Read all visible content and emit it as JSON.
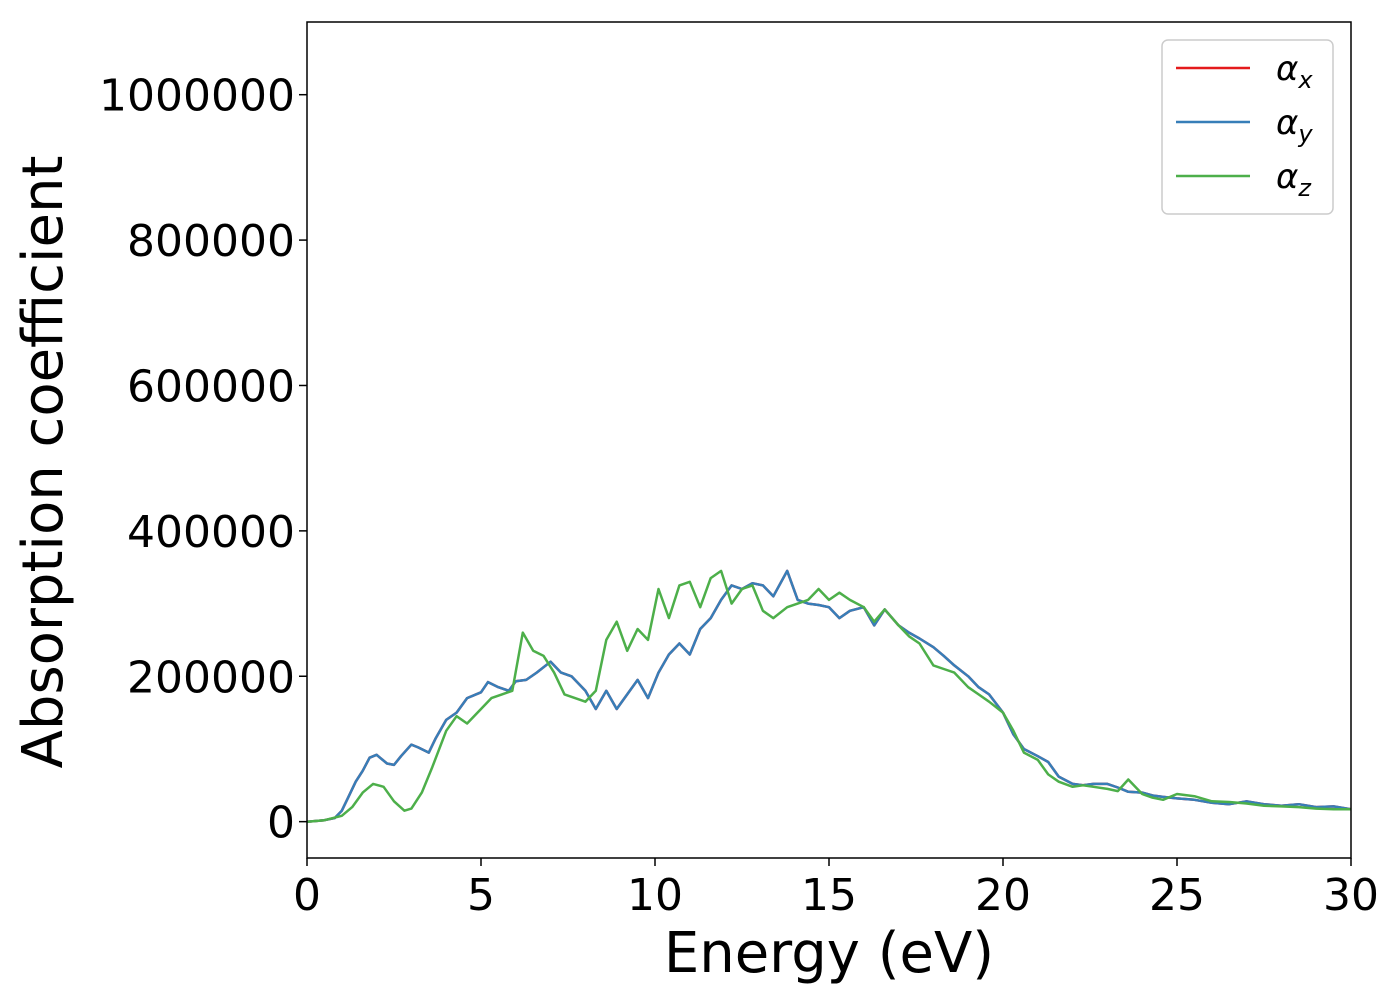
{
  "chart_data": {
    "type": "line",
    "title": "",
    "xlabel": "Energy (eV)",
    "ylabel": "Absorption coefficient",
    "xlim": [
      0,
      30
    ],
    "ylim": [
      -50000,
      1100000
    ],
    "xticks": [
      0,
      5,
      10,
      15,
      20,
      25,
      30
    ],
    "yticks": [
      0,
      200000,
      400000,
      600000,
      800000,
      1000000
    ],
    "xtick_labels": [
      "0",
      "5",
      "10",
      "15",
      "20",
      "25",
      "30"
    ],
    "ytick_labels": [
      "0",
      "200000",
      "400000",
      "600000",
      "800000",
      "1000000"
    ],
    "grid": false,
    "legend_position": "top-right",
    "series": [
      {
        "name": "αx",
        "name_base": "α",
        "name_sub": "x",
        "color": "#e41a1c",
        "x": [
          0,
          0.5,
          0.8,
          1.0,
          1.2,
          1.4,
          1.6,
          1.8,
          2.0,
          2.3,
          2.5,
          2.7,
          3.0,
          3.2,
          3.5,
          3.7,
          4.0,
          4.3,
          4.6,
          5.0,
          5.2,
          5.5,
          5.8,
          6.0,
          6.3,
          6.6,
          7.0,
          7.3,
          7.6,
          8.0,
          8.3,
          8.6,
          8.9,
          9.2,
          9.5,
          9.8,
          10.1,
          10.4,
          10.7,
          11.0,
          11.3,
          11.6,
          11.9,
          12.2,
          12.5,
          12.8,
          13.1,
          13.4,
          13.8,
          14.1,
          14.4,
          14.7,
          15.0,
          15.3,
          15.6,
          16.0,
          16.3,
          16.6,
          17.0,
          17.3,
          17.6,
          18.0,
          18.3,
          18.6,
          19.0,
          19.3,
          19.6,
          20.0,
          20.3,
          20.6,
          21.0,
          21.3,
          21.6,
          22.0,
          22.3,
          22.6,
          23.0,
          23.3,
          23.6,
          24.0,
          24.3,
          24.6,
          25.0,
          25.5,
          26.0,
          26.5,
          27.0,
          27.5,
          28.0,
          28.5,
          29.0,
          29.5,
          30.0
        ],
        "y": [
          0,
          2000,
          5000,
          15000,
          35000,
          55000,
          70000,
          88000,
          92000,
          80000,
          78000,
          90000,
          106000,
          102000,
          95000,
          115000,
          140000,
          150000,
          170000,
          178000,
          192000,
          185000,
          180000,
          193000,
          195000,
          205000,
          220000,
          205000,
          200000,
          180000,
          155000,
          180000,
          155000,
          175000,
          195000,
          170000,
          205000,
          230000,
          245000,
          230000,
          265000,
          280000,
          305000,
          325000,
          320000,
          328000,
          325000,
          310000,
          345000,
          305000,
          300000,
          298000,
          295000,
          280000,
          290000,
          295000,
          270000,
          292000,
          270000,
          260000,
          252000,
          240000,
          228000,
          215000,
          200000,
          185000,
          175000,
          150000,
          120000,
          100000,
          90000,
          82000,
          62000,
          52000,
          50000,
          52000,
          52000,
          47000,
          41000,
          40000,
          36000,
          34000,
          32000,
          30000,
          26000,
          24000,
          28000,
          24000,
          22000,
          24000,
          20000,
          21000,
          17000
        ]
      },
      {
        "name": "αy",
        "name_base": "α",
        "name_sub": "y",
        "color": "#377eb8",
        "x": [
          0,
          0.5,
          0.8,
          1.0,
          1.2,
          1.4,
          1.6,
          1.8,
          2.0,
          2.3,
          2.5,
          2.7,
          3.0,
          3.2,
          3.5,
          3.7,
          4.0,
          4.3,
          4.6,
          5.0,
          5.2,
          5.5,
          5.8,
          6.0,
          6.3,
          6.6,
          7.0,
          7.3,
          7.6,
          8.0,
          8.3,
          8.6,
          8.9,
          9.2,
          9.5,
          9.8,
          10.1,
          10.4,
          10.7,
          11.0,
          11.3,
          11.6,
          11.9,
          12.2,
          12.5,
          12.8,
          13.1,
          13.4,
          13.8,
          14.1,
          14.4,
          14.7,
          15.0,
          15.3,
          15.6,
          16.0,
          16.3,
          16.6,
          17.0,
          17.3,
          17.6,
          18.0,
          18.3,
          18.6,
          19.0,
          19.3,
          19.6,
          20.0,
          20.3,
          20.6,
          21.0,
          21.3,
          21.6,
          22.0,
          22.3,
          22.6,
          23.0,
          23.3,
          23.6,
          24.0,
          24.3,
          24.6,
          25.0,
          25.5,
          26.0,
          26.5,
          27.0,
          27.5,
          28.0,
          28.5,
          29.0,
          29.5,
          30.0
        ],
        "y": [
          0,
          2000,
          5000,
          15000,
          35000,
          55000,
          70000,
          88000,
          92000,
          80000,
          78000,
          90000,
          106000,
          102000,
          95000,
          115000,
          140000,
          150000,
          170000,
          178000,
          192000,
          185000,
          180000,
          193000,
          195000,
          205000,
          220000,
          205000,
          200000,
          180000,
          155000,
          180000,
          155000,
          175000,
          195000,
          170000,
          205000,
          230000,
          245000,
          230000,
          265000,
          280000,
          305000,
          325000,
          320000,
          328000,
          325000,
          310000,
          345000,
          305000,
          300000,
          298000,
          295000,
          280000,
          290000,
          295000,
          270000,
          292000,
          270000,
          260000,
          252000,
          240000,
          228000,
          215000,
          200000,
          185000,
          175000,
          150000,
          120000,
          100000,
          90000,
          82000,
          62000,
          52000,
          50000,
          52000,
          52000,
          47000,
          41000,
          40000,
          36000,
          34000,
          32000,
          30000,
          26000,
          24000,
          28000,
          24000,
          22000,
          24000,
          20000,
          21000,
          17000
        ]
      },
      {
        "name": "αz",
        "name_base": "α",
        "name_sub": "z",
        "color": "#4daf4a",
        "x": [
          0,
          0.5,
          1.0,
          1.3,
          1.6,
          1.9,
          2.2,
          2.5,
          2.8,
          3.0,
          3.3,
          3.6,
          4.0,
          4.3,
          4.6,
          5.0,
          5.3,
          5.6,
          5.9,
          6.2,
          6.5,
          6.8,
          7.1,
          7.4,
          7.7,
          8.0,
          8.3,
          8.6,
          8.9,
          9.2,
          9.5,
          9.8,
          10.1,
          10.4,
          10.7,
          11.0,
          11.3,
          11.6,
          11.9,
          12.2,
          12.5,
          12.8,
          13.1,
          13.4,
          13.8,
          14.1,
          14.4,
          14.7,
          15.0,
          15.3,
          15.6,
          16.0,
          16.3,
          16.6,
          17.0,
          17.3,
          17.6,
          18.0,
          18.3,
          18.6,
          19.0,
          19.3,
          19.6,
          20.0,
          20.3,
          20.6,
          21.0,
          21.3,
          21.6,
          22.0,
          22.3,
          22.6,
          23.0,
          23.3,
          23.6,
          24.0,
          24.3,
          24.6,
          25.0,
          25.5,
          26.0,
          26.5,
          27.0,
          27.5,
          28.0,
          28.5,
          29.0,
          29.5,
          30.0
        ],
        "y": [
          0,
          2000,
          8000,
          20000,
          40000,
          52000,
          48000,
          28000,
          15000,
          18000,
          40000,
          75000,
          125000,
          145000,
          135000,
          155000,
          170000,
          175000,
          180000,
          260000,
          235000,
          228000,
          205000,
          175000,
          170000,
          165000,
          180000,
          250000,
          275000,
          235000,
          265000,
          250000,
          320000,
          280000,
          325000,
          330000,
          295000,
          335000,
          345000,
          300000,
          320000,
          325000,
          290000,
          280000,
          295000,
          300000,
          305000,
          320000,
          305000,
          315000,
          305000,
          295000,
          275000,
          292000,
          270000,
          255000,
          245000,
          215000,
          210000,
          205000,
          185000,
          175000,
          165000,
          150000,
          125000,
          95000,
          85000,
          65000,
          55000,
          48000,
          50000,
          48000,
          45000,
          42000,
          58000,
          38000,
          33000,
          30000,
          38000,
          35000,
          28000,
          27000,
          25000,
          22000,
          21000,
          20000,
          18000,
          17000,
          17000
        ]
      }
    ]
  }
}
